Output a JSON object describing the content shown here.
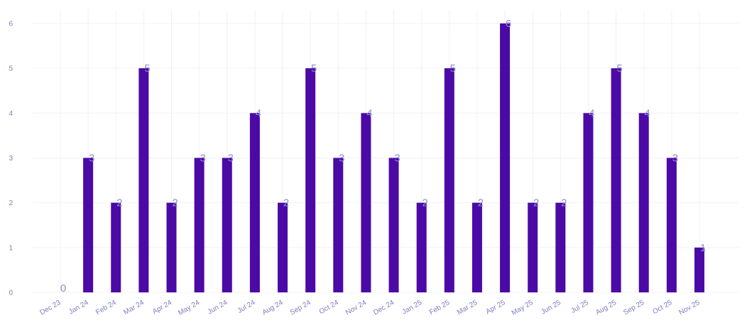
{
  "chart_data": {
    "type": "bar",
    "title": "",
    "xlabel": "",
    "ylabel": "",
    "ylim": [
      0,
      6
    ],
    "yticks": [
      "0",
      "1",
      "2",
      "3",
      "4",
      "5",
      "6"
    ],
    "grid": true,
    "legend": "none",
    "categories": [
      "Dec 23",
      "Jan 24",
      "Feb 24",
      "Mar 24",
      "Apr 24",
      "May 24",
      "Jun 24",
      "Jul 24",
      "Aug 24",
      "Sep 24",
      "Oct 24",
      "Nov 24",
      "Dec 24",
      "Jan 25",
      "Feb 25",
      "Mar 25",
      "Apr 25",
      "May 25",
      "Jun 25",
      "Jul 25",
      "Aug 25",
      "Sep 25",
      "Oct 25",
      "Nov 25"
    ],
    "values": [
      0,
      3,
      2,
      5,
      2,
      3,
      3,
      4,
      2,
      5,
      3,
      4,
      3,
      2,
      5,
      2,
      6,
      2,
      2,
      4,
      5,
      4,
      3,
      1
    ],
    "bar_color": "#4b0aa6",
    "label_color": "#8a8fd0",
    "tick_color": "#7b7fbf",
    "grid_color": "#f0f0fb"
  }
}
